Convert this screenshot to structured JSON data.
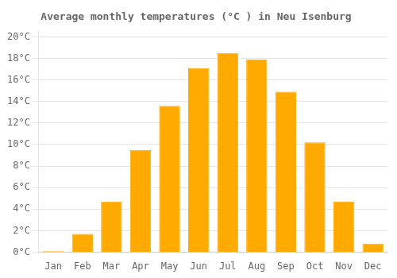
{
  "chart_data": {
    "type": "bar",
    "title": "Average monthly temperatures (°C ) in Neu Isenburg",
    "categories": [
      "Jan",
      "Feb",
      "Mar",
      "Apr",
      "May",
      "Jun",
      "Jul",
      "Aug",
      "Sep",
      "Oct",
      "Nov",
      "Dec"
    ],
    "values": [
      0.1,
      1.7,
      4.7,
      9.5,
      13.6,
      17.1,
      18.5,
      17.9,
      14.9,
      10.2,
      4.7,
      0.8
    ],
    "color": "#FFAA00",
    "ylim": [
      0,
      20.5
    ],
    "yticks": [
      {
        "value": 0,
        "label": "0°C"
      },
      {
        "value": 2,
        "label": "2°C"
      },
      {
        "value": 4,
        "label": "4°C"
      },
      {
        "value": 6,
        "label": "6°C"
      },
      {
        "value": 8,
        "label": "8°C"
      },
      {
        "value": 10,
        "label": "10°C"
      },
      {
        "value": 12,
        "label": "12°C"
      },
      {
        "value": 14,
        "label": "14°C"
      },
      {
        "value": 16,
        "label": "16°C"
      },
      {
        "value": 18,
        "label": "18°C"
      },
      {
        "value": 20,
        "label": "20°C"
      }
    ],
    "grid": true
  }
}
